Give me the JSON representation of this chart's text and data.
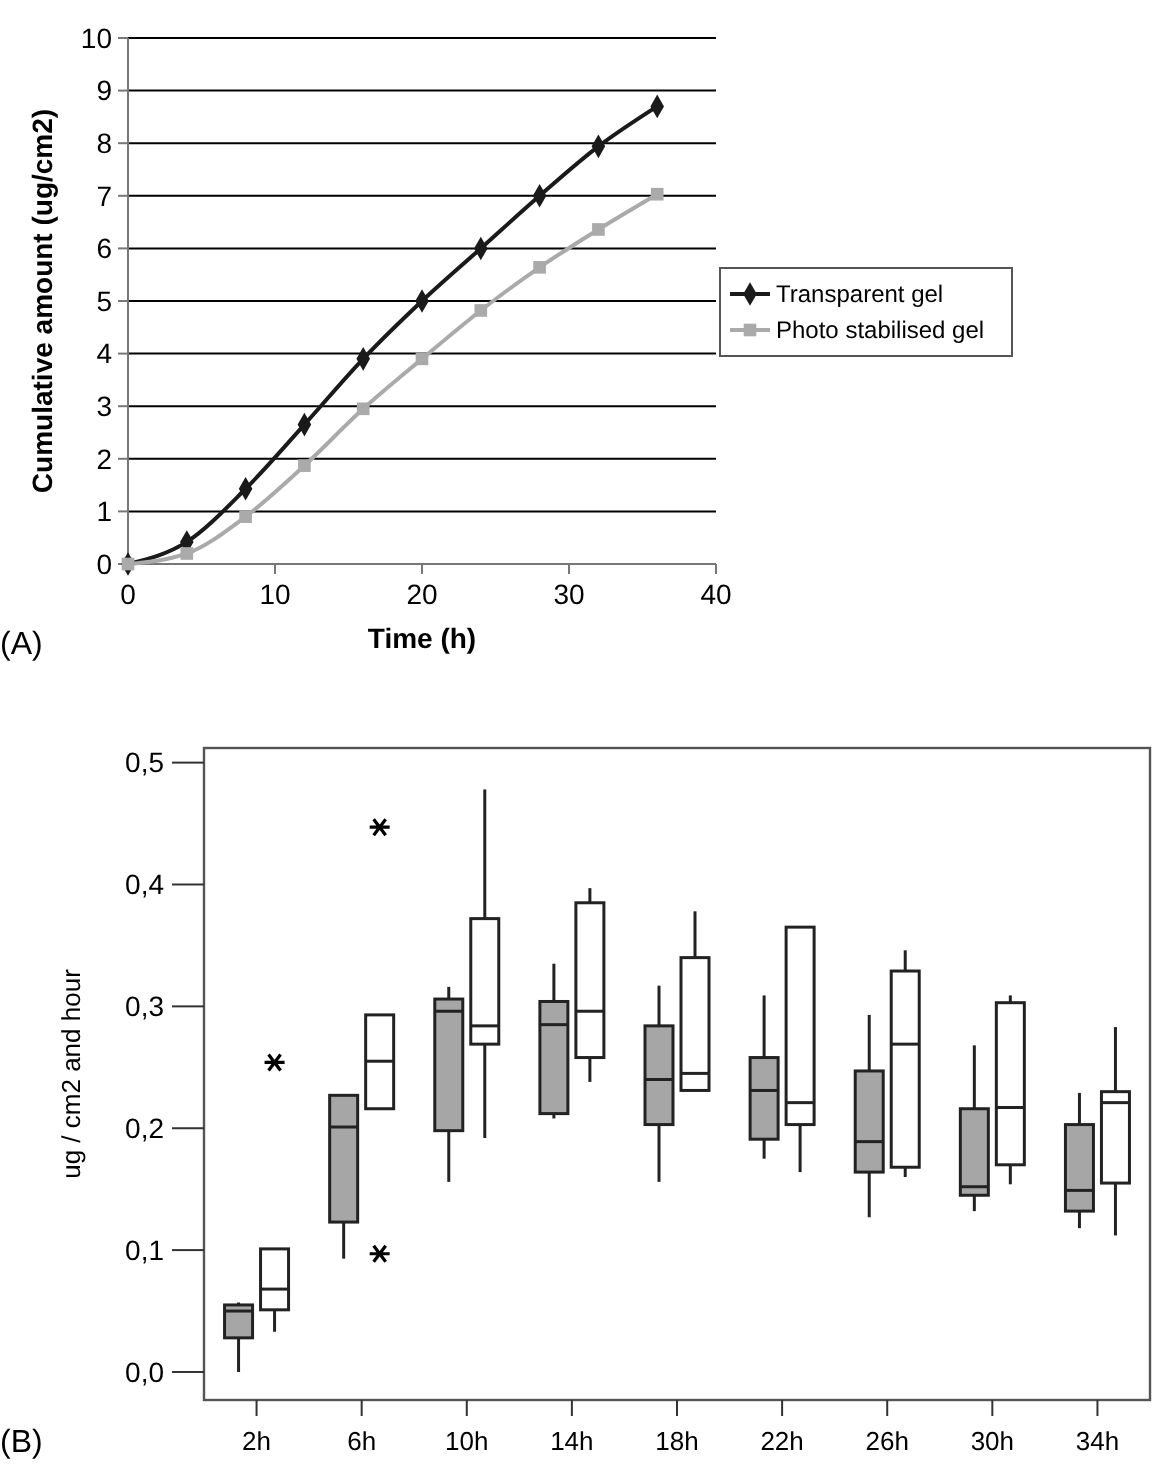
{
  "chart_data": [
    {
      "type": "line",
      "xlabel": "Time (h)",
      "ylabel": "Cumulative amount (ug/cm2)",
      "x": [
        0,
        4,
        8,
        12,
        16,
        20,
        24,
        28,
        32,
        36
      ],
      "xlim": [
        0,
        40
      ],
      "xticks": [
        0,
        10,
        20,
        30,
        40
      ],
      "ylim": [
        0,
        10
      ],
      "yticks": [
        0,
        1,
        2,
        3,
        4,
        5,
        6,
        7,
        8,
        9,
        10
      ],
      "grid": "y",
      "legend": "right",
      "annotations": [
        "(A)"
      ],
      "series": [
        {
          "name": "Transparent gel",
          "color": "#1a1a1a",
          "marker": "diamond",
          "values": [
            0,
            0.42,
            1.43,
            2.65,
            3.9,
            5.0,
            6.0,
            7.0,
            7.94,
            8.7
          ]
        },
        {
          "name": "Photo stabilised gel",
          "color": "#aaaaaa",
          "marker": "square",
          "values": [
            0,
            0.2,
            0.9,
            1.87,
            2.95,
            3.9,
            4.82,
            5.64,
            6.36,
            7.03
          ]
        }
      ]
    },
    {
      "type": "box",
      "ylabel": "ug / cm2 and hour",
      "categories": [
        "2h",
        "6h",
        "10h",
        "14h",
        "18h",
        "22h",
        "26h",
        "30h",
        "34h"
      ],
      "ylim": [
        -0.023,
        0.512
      ],
      "yticks": [
        {
          "value": 0,
          "label": "0,0"
        },
        {
          "value": 0.1,
          "label": "0,1"
        },
        {
          "value": 0.2,
          "label": "0,2"
        },
        {
          "value": 0.3,
          "label": "0,3"
        },
        {
          "value": 0.4,
          "label": "0,4"
        },
        {
          "value": 0.5,
          "label": "0,5"
        }
      ],
      "annotations": [
        "(B)"
      ],
      "series": [
        {
          "color": "#a6a6a6",
          "boxes": [
            {
              "low": 0.0,
              "q1": 0.028,
              "median": 0.05,
              "q3": 0.055,
              "high": 0.057
            },
            {
              "low": 0.093,
              "q1": 0.123,
              "median": 0.201,
              "q3": 0.227,
              "high": 0.228
            },
            {
              "low": 0.156,
              "q1": 0.198,
              "median": 0.296,
              "q3": 0.306,
              "high": 0.316
            },
            {
              "low": 0.208,
              "q1": 0.212,
              "median": 0.285,
              "q3": 0.304,
              "high": 0.335
            },
            {
              "low": 0.156,
              "q1": 0.203,
              "median": 0.24,
              "q3": 0.284,
              "high": 0.317
            },
            {
              "low": 0.175,
              "q1": 0.191,
              "median": 0.231,
              "q3": 0.258,
              "high": 0.309
            },
            {
              "low": 0.127,
              "q1": 0.164,
              "median": 0.189,
              "q3": 0.247,
              "high": 0.293
            },
            {
              "low": 0.132,
              "q1": 0.145,
              "median": 0.152,
              "q3": 0.216,
              "high": 0.268
            },
            {
              "low": 0.118,
              "q1": 0.132,
              "median": 0.149,
              "q3": 0.203,
              "high": 0.229
            }
          ]
        },
        {
          "color": "#ffffff",
          "boxes": [
            {
              "low": 0.033,
              "q1": 0.051,
              "median": 0.068,
              "q3": 0.101,
              "high": 0.101,
              "outliers": [
                0.254
              ]
            },
            {
              "low": 0.216,
              "q1": 0.216,
              "median": 0.255,
              "q3": 0.293,
              "high": 0.293,
              "outliers": [
                0.447,
                0.097
              ]
            },
            {
              "low": 0.192,
              "q1": 0.269,
              "median": 0.284,
              "q3": 0.372,
              "high": 0.478
            },
            {
              "low": 0.238,
              "q1": 0.258,
              "median": 0.296,
              "q3": 0.385,
              "high": 0.397
            },
            {
              "low": 0.231,
              "q1": 0.231,
              "median": 0.245,
              "q3": 0.34,
              "high": 0.378
            },
            {
              "low": 0.164,
              "q1": 0.203,
              "median": 0.221,
              "q3": 0.365,
              "high": 0.365
            },
            {
              "low": 0.16,
              "q1": 0.168,
              "median": 0.269,
              "q3": 0.329,
              "high": 0.346
            },
            {
              "low": 0.154,
              "q1": 0.17,
              "median": 0.217,
              "q3": 0.303,
              "high": 0.309
            },
            {
              "low": 0.112,
              "q1": 0.155,
              "median": 0.221,
              "q3": 0.23,
              "high": 0.283
            }
          ]
        }
      ]
    }
  ]
}
